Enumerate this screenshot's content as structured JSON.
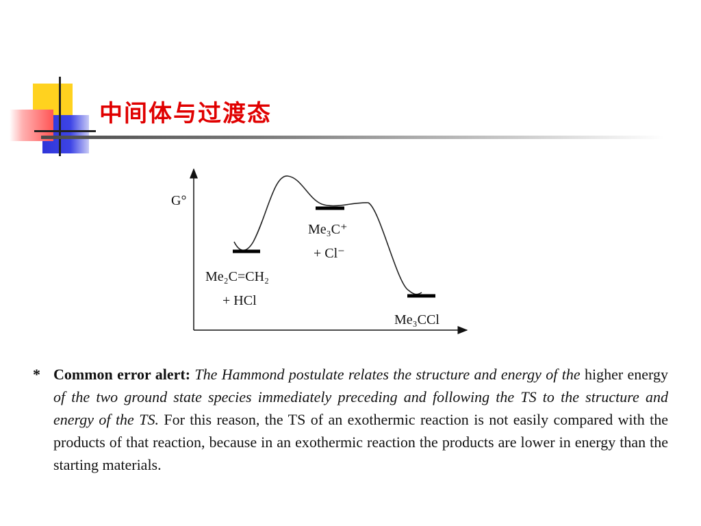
{
  "slide": {
    "title": "中间体与过渡态",
    "accent_colors": {
      "yellow": "#ffd21f",
      "blue": "#2f35d8",
      "red": "#ff4d4d",
      "title": "#e00000"
    }
  },
  "diagram": {
    "y_axis_label": "G°",
    "species": [
      {
        "id": "reactants",
        "line1": "Me₂C=CH₂",
        "line2": "+ HCl"
      },
      {
        "id": "intermediate",
        "line1": "Me₃C⁺",
        "line2": "+ Cl⁻"
      },
      {
        "id": "product",
        "line1": "Me₃CCl"
      }
    ]
  },
  "note": {
    "bullet": "*",
    "segments": [
      {
        "style": "bold",
        "text": "Common error alert: "
      },
      {
        "style": "italic",
        "text": "The Hammond postulate relates the structure and energy of the "
      },
      {
        "style": "normal",
        "text": "higher energy "
      },
      {
        "style": "italic",
        "text": "of the two ground state species immediately preceding and following the TS to the structure and energy of the TS."
      },
      {
        "style": "normal",
        "text": " For this reason, the TS of an exothermic reaction is not easily compared with the products of that reaction, because in an exothermic reaction the products are lower in energy than the starting materials."
      }
    ]
  }
}
